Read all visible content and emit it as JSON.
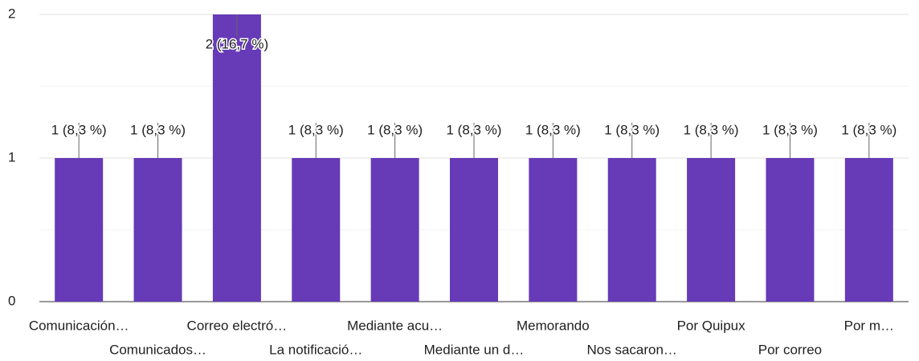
{
  "chart_data": {
    "type": "bar",
    "categories": [
      "Comunicación…",
      "Comunicados…",
      "Correo electró…",
      "La notificació…",
      "Mediante acu…",
      "Mediante un d…",
      "Memorando",
      "Nos sacaron…",
      "Por Quipux",
      "Por correo",
      "Por m…"
    ],
    "values": [
      1,
      1,
      2,
      1,
      1,
      1,
      1,
      1,
      1,
      1,
      1
    ],
    "value_labels": [
      "1 (8,3 %)",
      "1 (8,3 %)",
      "2 (16,7 %)",
      "1 (8,3 %)",
      "1 (8,3 %)",
      "1 (8,3 %)",
      "1 (8,3 %)",
      "1 (8,3 %)",
      "1 (8,3 %)",
      "1 (8,3 %)",
      "1 (8,3 %)"
    ],
    "color": "#673ab7",
    "ylim": [
      0,
      2
    ],
    "yticks": [
      0,
      1,
      2
    ],
    "minor_yticks": [
      0.5,
      1.5
    ],
    "grid": true
  }
}
